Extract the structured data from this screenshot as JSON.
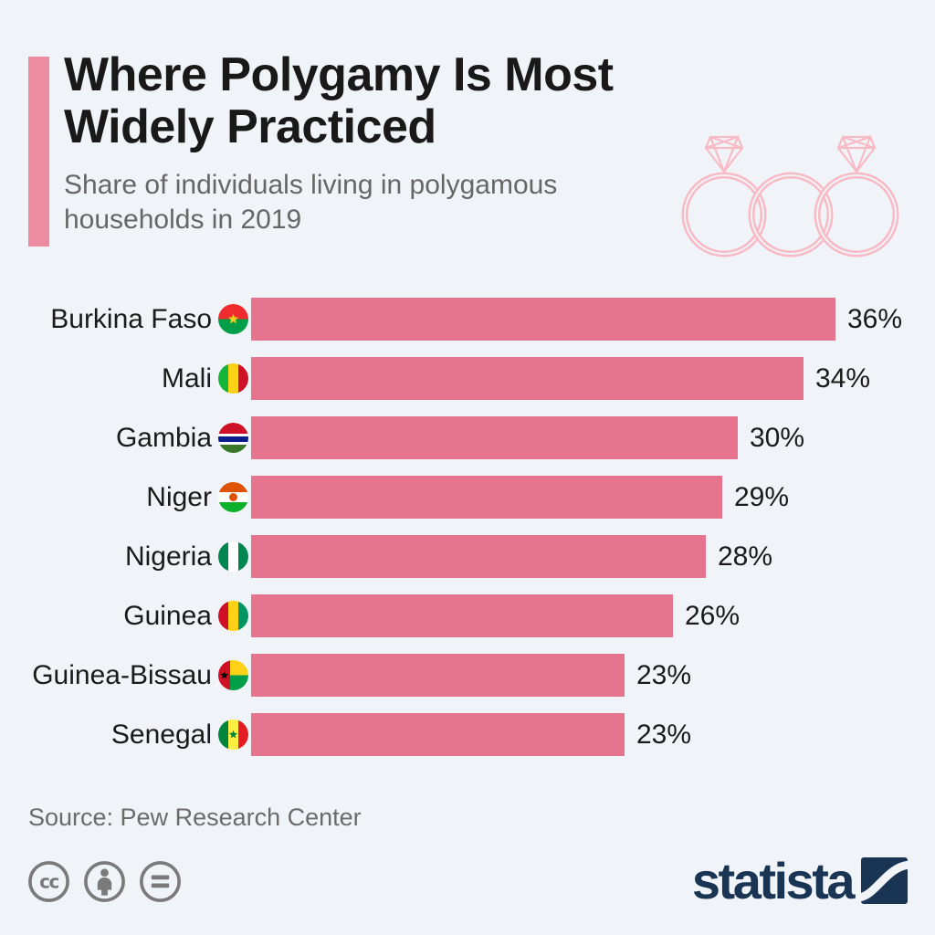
{
  "header": {
    "title_lines": [
      "Where Polygamy Is Most",
      "Widely Practiced"
    ],
    "subtitle": "Share of individuals living in polygamous households in 2019"
  },
  "chart_data": {
    "type": "bar",
    "orientation": "horizontal",
    "title": "Where Polygamy Is Most Widely Practiced",
    "subtitle": "Share of individuals living in polygamous households in 2019",
    "unit": "%",
    "categories": [
      "Burkina Faso",
      "Mali",
      "Gambia",
      "Niger",
      "Nigeria",
      "Guinea",
      "Guinea-Bissau",
      "Senegal"
    ],
    "values": [
      36,
      34,
      30,
      29,
      28,
      26,
      23,
      23
    ],
    "value_labels": [
      "36%",
      "34%",
      "30%",
      "29%",
      "28%",
      "26%",
      "23%",
      "23%"
    ],
    "flag_icons": [
      "burkina-faso-flag-icon",
      "mali-flag-icon",
      "gambia-flag-icon",
      "niger-flag-icon",
      "nigeria-flag-icon",
      "guinea-flag-icon",
      "guinea-bissau-flag-icon",
      "senegal-flag-icon"
    ],
    "xlim": [
      0,
      36
    ],
    "grid": false,
    "legend": false
  },
  "illustration": {
    "name": "three-interlocked-wedding-rings",
    "color": "#f8bac5"
  },
  "footer": {
    "source": "Source: Pew Research Center",
    "license_icons": [
      "creative-commons-icon",
      "attribution-icon",
      "no-derivatives-icon"
    ],
    "brand": "statista"
  },
  "colors": {
    "background": "#f0f4f8",
    "bar": "#e7748f",
    "accent_bar": "#ec8ba1",
    "rings": "#f8bac5",
    "title_text": "#191919",
    "subtitle_text": "#666666",
    "label_text": "#1a1a1a",
    "source_text": "#6b6b6b",
    "license_icon": "#7a7a7a",
    "brand_navy": "#1a3553"
  }
}
